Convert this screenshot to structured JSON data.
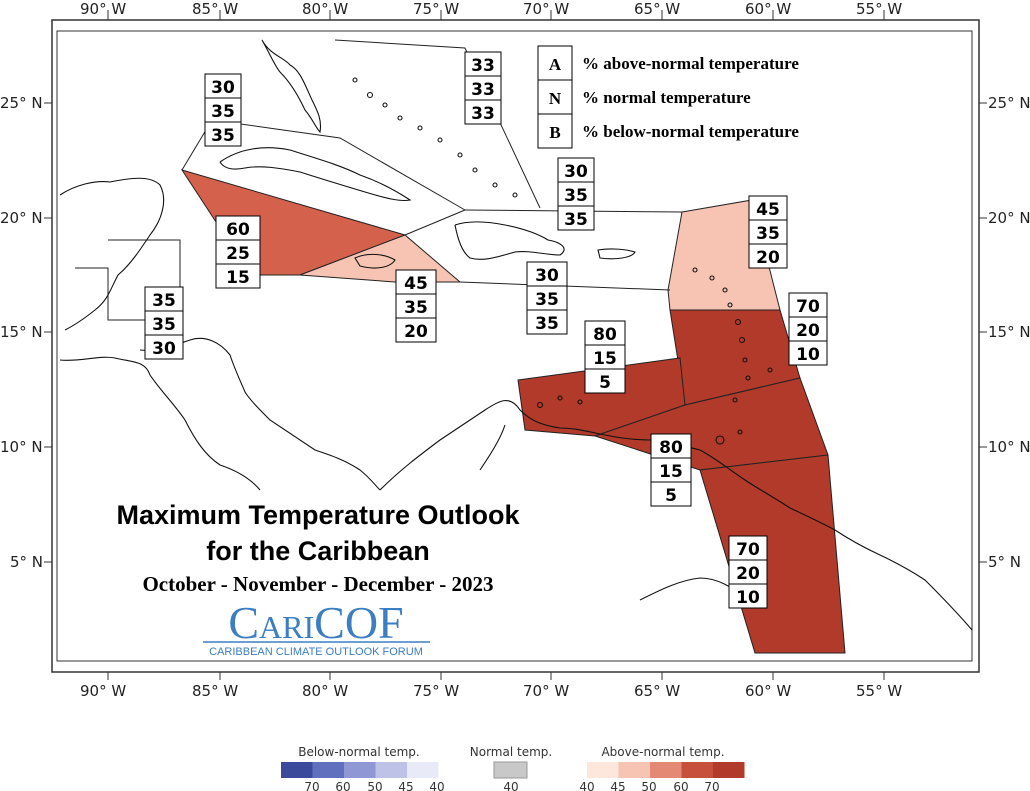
{
  "map": {
    "title_line1": "Maximum Temperature Outlook",
    "title_line2": "for the Caribbean",
    "period": "October - November - December - 2023",
    "logo_text": "CariCOF",
    "logo_subtitle": "CARIBBEAN CLIMATE OUTLOOK FORUM",
    "colors": {
      "above_80": "#b13a2a",
      "above_70": "#b13a2a",
      "above_60": "#d4614c",
      "above_45": "#f7c3b2",
      "normal": "#ffffff",
      "coast": "#111111"
    },
    "lon_labels": [
      "90° W",
      "85° W",
      "80° W",
      "75° W",
      "70° W",
      "65° W",
      "60° W",
      "55° W"
    ],
    "lat_labels": [
      "25° N",
      "20° N",
      "15° N",
      "10° N",
      "5° N"
    ],
    "key": {
      "A": "A",
      "A_text": "% above-normal temperature",
      "N": "N",
      "N_text": "% normal temperature",
      "B": "B",
      "B_text": "% below-normal temperature"
    },
    "zones": [
      {
        "name": "bahamas",
        "A": "33",
        "N": "33",
        "B": "33"
      },
      {
        "name": "gulf-cuba",
        "A": "30",
        "N": "35",
        "B": "35"
      },
      {
        "name": "hispaniola-north",
        "A": "30",
        "N": "35",
        "B": "35"
      },
      {
        "name": "cayman",
        "A": "60",
        "N": "25",
        "B": "15"
      },
      {
        "name": "jamaica",
        "A": "45",
        "N": "35",
        "B": "20"
      },
      {
        "name": "hispaniola-south",
        "A": "30",
        "N": "35",
        "B": "35"
      },
      {
        "name": "leewards",
        "A": "45",
        "N": "35",
        "B": "20"
      },
      {
        "name": "belize",
        "A": "35",
        "N": "35",
        "B": "30"
      },
      {
        "name": "windwards",
        "A": "70",
        "N": "20",
        "B": "10"
      },
      {
        "name": "abc-islands",
        "A": "80",
        "N": "15",
        "B": "5"
      },
      {
        "name": "trinidad",
        "A": "80",
        "N": "15",
        "B": "5"
      },
      {
        "name": "guianas",
        "A": "70",
        "N": "20",
        "B": "10"
      }
    ]
  },
  "scale": {
    "below_label": "Below-normal temp.",
    "normal_label": "Normal temp.",
    "above_label": "Above-normal temp.",
    "below_colors": [
      "#3b4a9a",
      "#6170be",
      "#8f98d4",
      "#bdc2e6",
      "#e8eaf7"
    ],
    "below_ticks": [
      "70",
      "60",
      "50",
      "45",
      "40"
    ],
    "normal_color": "#c8c8c8",
    "normal_tick": "40",
    "above_colors": [
      "#fde6dc",
      "#f7c3b2",
      "#e48a74",
      "#c7503c",
      "#b13a2a"
    ],
    "above_ticks": [
      "40",
      "45",
      "50",
      "60",
      "70"
    ]
  }
}
